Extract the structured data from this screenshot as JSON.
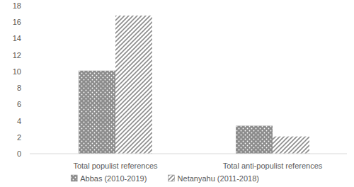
{
  "chart_data": {
    "type": "bar",
    "categories": [
      "Total populist references",
      "Total anti-populist references"
    ],
    "series": [
      {
        "name": "Abbas (2010-2019)",
        "color": "#8c8c8c",
        "values": [
          10.1,
          3.4
        ]
      },
      {
        "name": "Netanyahu (2011-2018)",
        "color": "#8c8c8c",
        "values": [
          16.8,
          2.1
        ]
      }
    ],
    "ylim": [
      0,
      18
    ],
    "yticks": [
      0,
      2,
      4,
      6,
      8,
      10,
      12,
      14,
      16,
      18
    ],
    "grid": false,
    "legend": "bottom"
  }
}
